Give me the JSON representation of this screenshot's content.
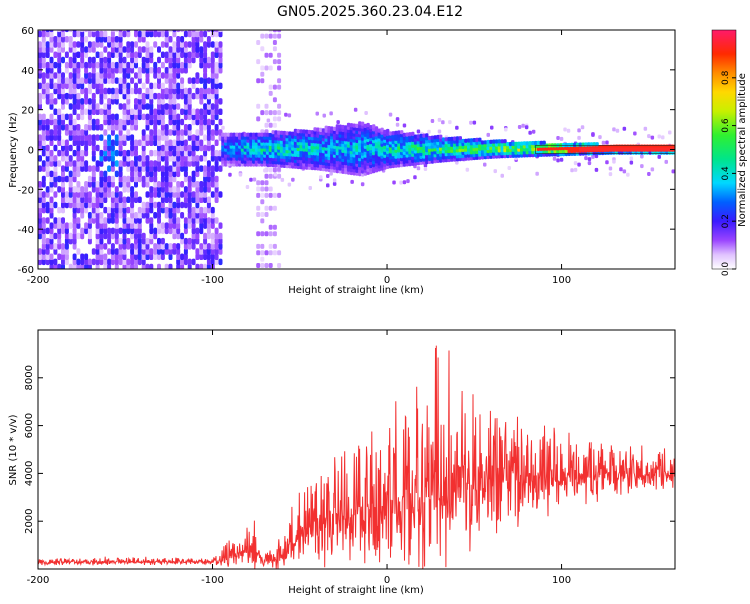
{
  "figure": {
    "title": "GN05.2025.360.23.04.E12"
  },
  "chart_data": [
    {
      "type": "heatmap",
      "id": "spectrogram",
      "xlabel": "Height of straight line (km)",
      "ylabel": "Frequency (Hz)",
      "xlim": [
        -200,
        165
      ],
      "ylim": [
        -60,
        60
      ],
      "xticks": [
        -200,
        -100,
        0,
        100
      ],
      "yticks": [
        -60,
        -40,
        -20,
        0,
        20,
        40,
        60
      ],
      "noise_region_end_x": -95,
      "noise_column_x": [
        -75,
        -62
      ],
      "signal_band": [
        {
          "x": -95,
          "halfwidth": 8,
          "amp": 0.35
        },
        {
          "x": -70,
          "halfwidth": 8,
          "amp": 0.55
        },
        {
          "x": -40,
          "halfwidth": 10,
          "amp": 0.45
        },
        {
          "x": -15,
          "halfwidth": 13,
          "amp": 0.45
        },
        {
          "x": 0,
          "halfwidth": 9,
          "amp": 0.5
        },
        {
          "x": 30,
          "halfwidth": 6,
          "amp": 0.6
        },
        {
          "x": 60,
          "halfwidth": 4,
          "amp": 0.7
        },
        {
          "x": 90,
          "halfwidth": 3,
          "amp": 0.85
        },
        {
          "x": 130,
          "halfwidth": 2,
          "amp": 0.9
        },
        {
          "x": 165,
          "halfwidth": 2,
          "amp": 0.95
        }
      ],
      "colorbar": {
        "label": "Normalized spectral amplitude",
        "range": [
          0,
          1
        ],
        "ticks": [
          0.0,
          0.2,
          0.4,
          0.6,
          0.8
        ],
        "tick_labels": [
          "0.0",
          "0.2",
          "0.4",
          "0.6",
          "0.8"
        ]
      }
    },
    {
      "type": "line",
      "id": "snr",
      "xlabel": "Height of straight line (km)",
      "ylabel": "SNR (10 * v/v)",
      "xlim": [
        -200,
        165
      ],
      "ylim": [
        0,
        10000
      ],
      "xticks": [
        -200,
        -100,
        0,
        100
      ],
      "yticks": [
        2000,
        4000,
        6000,
        8000
      ],
      "series": [
        {
          "name": "SNR",
          "color": "#f23030",
          "envelope": {
            "x": [
              -200,
              -160,
              -100,
              -90,
              -80,
              -75,
              -70,
              -65,
              -60,
              -55,
              -40,
              -20,
              0,
              10,
              20,
              30,
              40,
              50,
              60,
              80,
              100,
              120,
              140,
              165
            ],
            "base": [
              250,
              300,
              300,
              500,
              700,
              900,
              400,
              300,
              500,
              1200,
              1800,
              2200,
              2500,
              2900,
              3100,
              3400,
              3500,
              3600,
              3600,
              3700,
              3800,
              3900,
              4000,
              4000
            ],
            "spread": [
              150,
              200,
              150,
              900,
              1100,
              1200,
              600,
              300,
              1200,
              1500,
              2300,
              3000,
              3800,
              4500,
              5500,
              5800,
              5200,
              4500,
              3200,
              2500,
              1800,
              1500,
              1200,
              900
            ]
          }
        }
      ]
    }
  ]
}
